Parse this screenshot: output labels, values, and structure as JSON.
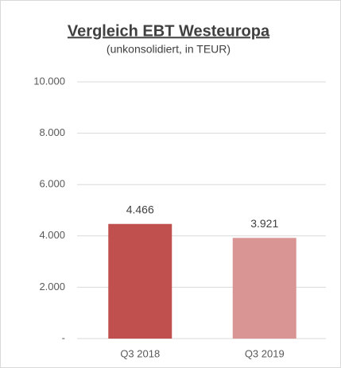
{
  "chart_data": {
    "type": "bar",
    "title": "Vergleich EBT Westeuropa",
    "subtitle": "(unkonsolidiert, in TEUR)",
    "categories": [
      "Q3 2018",
      "Q3 2019"
    ],
    "values": [
      4466,
      3921
    ],
    "value_labels": [
      "4.466",
      "3.921"
    ],
    "colors": [
      "#c0504d",
      "#d99594"
    ],
    "ylim": [
      0,
      10000
    ],
    "yticks": [
      {
        "value": 0,
        "label": "-"
      },
      {
        "value": 2000,
        "label": "2.000"
      },
      {
        "value": 4000,
        "label": "4.000"
      },
      {
        "value": 6000,
        "label": "6.000"
      },
      {
        "value": 8000,
        "label": "8.000"
      },
      {
        "value": 10000,
        "label": "10.000"
      }
    ],
    "grid": true
  }
}
